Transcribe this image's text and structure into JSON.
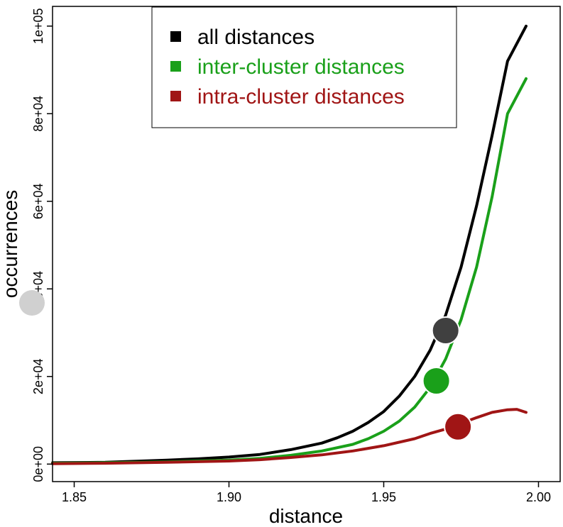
{
  "chart_data": {
    "type": "line",
    "title": "",
    "xlabel": "distance",
    "ylabel": "occurrences",
    "xlim": [
      1.843,
      2.007
    ],
    "ylim": [
      -4000,
      104500
    ],
    "grid": false,
    "legend_position": "top-center",
    "x_ticks": [
      {
        "value": 1.85,
        "label": "1.85"
      },
      {
        "value": 1.9,
        "label": "1.90"
      },
      {
        "value": 1.95,
        "label": "1.95"
      },
      {
        "value": 2.0,
        "label": "2.00"
      }
    ],
    "y_ticks": [
      {
        "value": 0,
        "label": "0e+00"
      },
      {
        "value": 20000,
        "label": "2e+04"
      },
      {
        "value": 40000,
        "label": "4e+04"
      },
      {
        "value": 60000,
        "label": "6e+04"
      },
      {
        "value": 80000,
        "label": "8e+04"
      },
      {
        "value": 100000,
        "label": "1e+05"
      }
    ],
    "series": [
      {
        "name": "all distances",
        "color": "#000000",
        "x": [
          1.843,
          1.86,
          1.88,
          1.89,
          1.9,
          1.91,
          1.92,
          1.93,
          1.935,
          1.94,
          1.945,
          1.95,
          1.955,
          1.96,
          1.965,
          1.97,
          1.975,
          1.98,
          1.985,
          1.99,
          1.996
        ],
        "y": [
          300,
          400,
          900,
          1200,
          1600,
          2200,
          3300,
          4800,
          6000,
          7500,
          9500,
          12000,
          15500,
          20000,
          26000,
          34000,
          45000,
          59000,
          75000,
          92000,
          100000
        ]
      },
      {
        "name": "inter-cluster distances",
        "color": "#1aa01a",
        "x": [
          1.843,
          1.86,
          1.88,
          1.9,
          1.91,
          1.92,
          1.93,
          1.94,
          1.945,
          1.95,
          1.955,
          1.96,
          1.965,
          1.97,
          1.975,
          1.98,
          1.985,
          1.99,
          1.996
        ],
        "y": [
          200,
          300,
          500,
          900,
          1300,
          2000,
          3000,
          4500,
          5800,
          7500,
          9800,
          13000,
          17500,
          24000,
          33000,
          45000,
          61000,
          80000,
          88000
        ]
      },
      {
        "name": "intra-cluster distances",
        "color": "#a01515",
        "x": [
          1.843,
          1.86,
          1.88,
          1.9,
          1.91,
          1.92,
          1.93,
          1.94,
          1.95,
          1.96,
          1.965,
          1.97,
          1.975,
          1.98,
          1.985,
          1.99,
          1.993,
          1.996
        ],
        "y": [
          100,
          200,
          400,
          700,
          1000,
          1500,
          2100,
          3000,
          4200,
          5800,
          7000,
          8000,
          9300,
          10600,
          11800,
          12400,
          12500,
          11800
        ]
      }
    ],
    "markers": [
      {
        "x": 1.97,
        "y": 30500,
        "color": "#404040"
      },
      {
        "x": 1.967,
        "y": 19000,
        "color": "#1aa01a"
      },
      {
        "x": 1.974,
        "y": 8500,
        "color": "#a01515"
      }
    ],
    "axis_marker_color": "#d0d0d0"
  }
}
